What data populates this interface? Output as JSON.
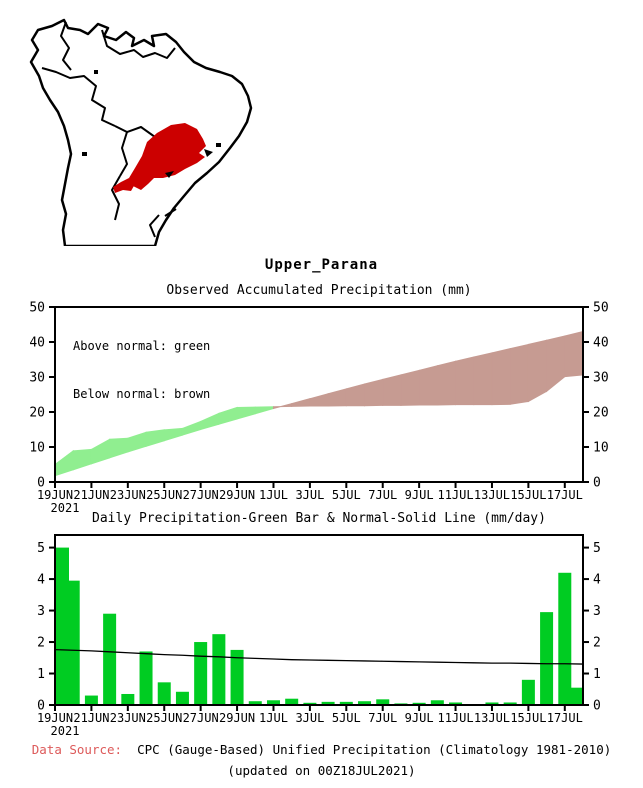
{
  "page": {
    "title": "Upper_Parana"
  },
  "map": {
    "description": "south-america-outline-map-with-basin-highlight",
    "highlight_color": "#cc0000",
    "outline_color": "#000000"
  },
  "footer": {
    "label": "Data Source:",
    "label_color": "#dd5a5a",
    "text": "CPC (Gauge-Based) Unified Precipitation (Climatology 1981-2010)",
    "updated": "(updated on 00Z18JUL2021)"
  },
  "chart_data": [
    {
      "id": "accumulated-precipitation",
      "type": "area",
      "title": "Observed Accumulated Precipitation (mm)",
      "legend": [
        "Above normal: green",
        "Below normal: brown"
      ],
      "above_color": "#90ee90",
      "below_color": "#c69b92",
      "ylim": [
        0,
        50
      ],
      "yticks": [
        0,
        10,
        20,
        30,
        40,
        50
      ],
      "x_tick_labels": [
        "19JUN",
        "21JUN",
        "23JUN",
        "25JUN",
        "27JUN",
        "29JUN",
        "1JUL",
        "3JUL",
        "5JUL",
        "7JUL",
        "9JUL",
        "11JUL",
        "13JUL",
        "15JUL",
        "17JUL"
      ],
      "x_tick_year": "2021",
      "x": [
        "19JUN",
        "20JUN",
        "21JUN",
        "22JUN",
        "23JUN",
        "24JUN",
        "25JUN",
        "26JUN",
        "27JUN",
        "28JUN",
        "29JUN",
        "30JUN",
        "1JUL",
        "2JUL",
        "3JUL",
        "4JUL",
        "5JUL",
        "6JUL",
        "7JUL",
        "8JUL",
        "9JUL",
        "10JUL",
        "11JUL",
        "12JUL",
        "13JUL",
        "14JUL",
        "15JUL",
        "16JUL",
        "17JUL",
        "18JUL"
      ],
      "series": [
        {
          "name": "observed",
          "values": [
            5.0,
            8.9,
            9.3,
            12.2,
            12.5,
            14.2,
            14.9,
            15.3,
            17.3,
            19.6,
            21.3,
            21.4,
            21.5,
            21.6,
            21.7,
            21.7,
            21.8,
            21.8,
            21.9,
            21.9,
            22.0,
            22.0,
            22.1,
            22.1,
            22.1,
            22.2,
            23.0,
            25.9,
            30.1,
            30.6
          ]
        },
        {
          "name": "normal",
          "values": [
            1.8,
            3.5,
            5.2,
            6.9,
            8.6,
            10.2,
            11.8,
            13.4,
            15.0,
            16.5,
            18.0,
            19.5,
            21.0,
            22.4,
            23.8,
            25.2,
            26.6,
            28.0,
            29.3,
            30.6,
            31.9,
            33.2,
            34.5,
            35.7,
            36.9,
            38.1,
            39.3,
            40.5,
            41.7,
            43.0
          ]
        }
      ]
    },
    {
      "id": "daily-precipitation",
      "type": "bar",
      "title": "Daily Precipitation-Green Bar & Normal-Solid Line (mm/day)",
      "bar_color": "#00cc22",
      "line_color": "#000000",
      "ylim": [
        0,
        5.4
      ],
      "yticks": [
        0,
        1,
        2,
        3,
        4,
        5
      ],
      "x_tick_labels": [
        "19JUN",
        "21JUN",
        "23JUN",
        "25JUN",
        "27JUN",
        "29JUN",
        "1JUL",
        "3JUL",
        "5JUL",
        "7JUL",
        "9JUL",
        "11JUL",
        "13JUL",
        "15JUL",
        "17JUL"
      ],
      "x_tick_year": "2021",
      "x": [
        "19JUN",
        "20JUN",
        "21JUN",
        "22JUN",
        "23JUN",
        "24JUN",
        "25JUN",
        "26JUN",
        "27JUN",
        "28JUN",
        "29JUN",
        "30JUN",
        "1JUL",
        "2JUL",
        "3JUL",
        "4JUL",
        "5JUL",
        "6JUL",
        "7JUL",
        "8JUL",
        "9JUL",
        "10JUL",
        "11JUL",
        "12JUL",
        "13JUL",
        "14JUL",
        "15JUL",
        "16JUL",
        "17JUL",
        "18JUL"
      ],
      "bars": [
        5.0,
        3.95,
        0.3,
        2.9,
        0.35,
        1.7,
        0.72,
        0.42,
        2.0,
        2.25,
        1.75,
        0.12,
        0.15,
        0.2,
        0.07,
        0.1,
        0.1,
        0.12,
        0.18,
        0.05,
        0.07,
        0.15,
        0.08,
        0.03,
        0.08,
        0.08,
        0.8,
        2.95,
        4.2,
        0.55
      ],
      "normal_line": [
        1.76,
        1.74,
        1.72,
        1.69,
        1.66,
        1.63,
        1.6,
        1.58,
        1.55,
        1.53,
        1.5,
        1.48,
        1.46,
        1.44,
        1.43,
        1.42,
        1.41,
        1.4,
        1.39,
        1.38,
        1.37,
        1.36,
        1.35,
        1.34,
        1.33,
        1.33,
        1.32,
        1.31,
        1.31,
        1.3
      ]
    }
  ]
}
